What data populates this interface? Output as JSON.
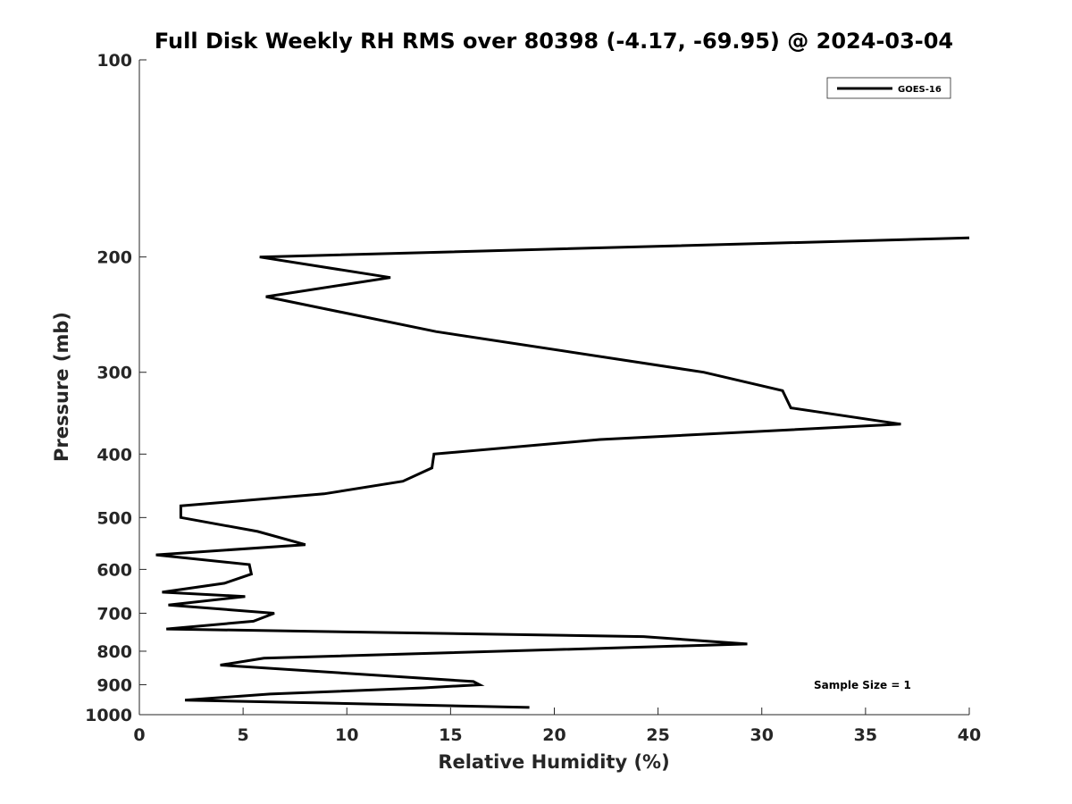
{
  "chart_data": {
    "type": "line",
    "title": "Full Disk Weekly RH RMS over 80398 (-4.17, -69.95) @ 2024-03-04",
    "xlabel": "Relative Humidity (%)",
    "ylabel": "Pressure (mb)",
    "xlim": [
      0,
      40
    ],
    "ylim": [
      100,
      1000
    ],
    "y_scale": "log",
    "y_reversed": true,
    "x_ticks": [
      0,
      5,
      10,
      15,
      20,
      25,
      30,
      35,
      40
    ],
    "y_ticks": [
      100,
      200,
      300,
      400,
      500,
      600,
      700,
      800,
      900,
      1000
    ],
    "grid": false,
    "legend_position": "top-right",
    "annotation": "Sample Size = 1",
    "series": [
      {
        "name": "GOES-16",
        "color": "#000000",
        "points": [
          [
            40.0,
            187
          ],
          [
            5.8,
            200
          ],
          [
            12.1,
            215
          ],
          [
            6.1,
            230
          ],
          [
            14.3,
            260
          ],
          [
            27.2,
            300
          ],
          [
            31.0,
            320
          ],
          [
            31.4,
            340
          ],
          [
            36.7,
            360
          ],
          [
            22.2,
            380
          ],
          [
            14.2,
            400
          ],
          [
            14.1,
            420
          ],
          [
            12.7,
            440
          ],
          [
            8.9,
            460
          ],
          [
            2.0,
            480
          ],
          [
            2.0,
            500
          ],
          [
            5.7,
            525
          ],
          [
            8.0,
            550
          ],
          [
            0.8,
            570
          ],
          [
            5.3,
            590
          ],
          [
            5.4,
            610
          ],
          [
            4.1,
            630
          ],
          [
            1.1,
            650
          ],
          [
            5.1,
            660
          ],
          [
            1.4,
            680
          ],
          [
            6.5,
            700
          ],
          [
            5.5,
            720
          ],
          [
            1.3,
            740
          ],
          [
            24.3,
            760
          ],
          [
            29.3,
            780
          ],
          [
            6.0,
            820
          ],
          [
            3.9,
            840
          ],
          [
            16.1,
            890
          ],
          [
            16.4,
            900
          ],
          [
            13.7,
            910
          ],
          [
            6.3,
            930
          ],
          [
            2.2,
            950
          ],
          [
            18.8,
            975
          ]
        ]
      }
    ]
  }
}
